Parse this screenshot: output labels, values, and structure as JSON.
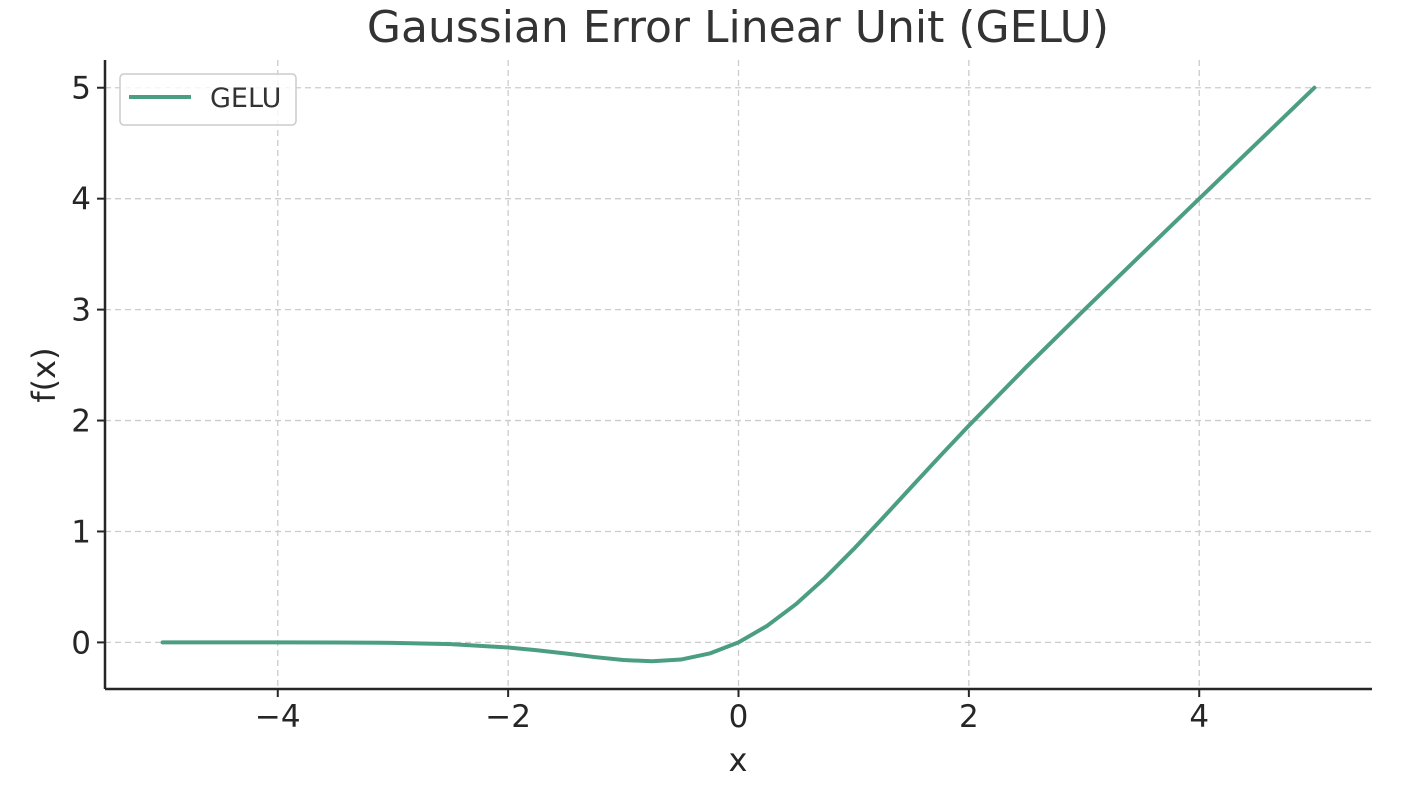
{
  "chart_data": {
    "type": "line",
    "title": "Gaussian Error Linear Unit (GELU)",
    "xlabel": "x",
    "ylabel": "f(x)",
    "xlim": [
      -5.5,
      5.5
    ],
    "ylim": [
      -0.42,
      5.25
    ],
    "x_ticks": [
      -4,
      -2,
      0,
      2,
      4
    ],
    "x_tick_labels": [
      "−4",
      "−2",
      "0",
      "2",
      "4"
    ],
    "y_ticks": [
      0,
      1,
      2,
      3,
      4,
      5
    ],
    "y_tick_labels": [
      "0",
      "1",
      "2",
      "3",
      "4",
      "5"
    ],
    "grid": true,
    "legend_position": "top-left",
    "series": [
      {
        "name": "GELU",
        "color": "#4c9e82",
        "x": [
          -5.0,
          -4.5,
          -4.0,
          -3.5,
          -3.0,
          -2.5,
          -2.0,
          -1.75,
          -1.5,
          -1.25,
          -1.0,
          -0.75,
          -0.5,
          -0.25,
          0.0,
          0.25,
          0.5,
          0.75,
          1.0,
          1.25,
          1.5,
          1.75,
          2.0,
          2.5,
          3.0,
          3.5,
          4.0,
          4.5,
          5.0
        ],
        "y": [
          0.0,
          0.0,
          -0.0001,
          -0.0008,
          -0.004,
          -0.0155,
          -0.0455,
          -0.0702,
          -0.1002,
          -0.1321,
          -0.1587,
          -0.17,
          -0.1543,
          -0.0995,
          0.0,
          0.1505,
          0.3457,
          0.58,
          0.8413,
          1.1179,
          1.3998,
          1.6798,
          1.9545,
          2.4845,
          2.996,
          3.4992,
          3.9999,
          4.5,
          5.0
        ]
      }
    ]
  }
}
